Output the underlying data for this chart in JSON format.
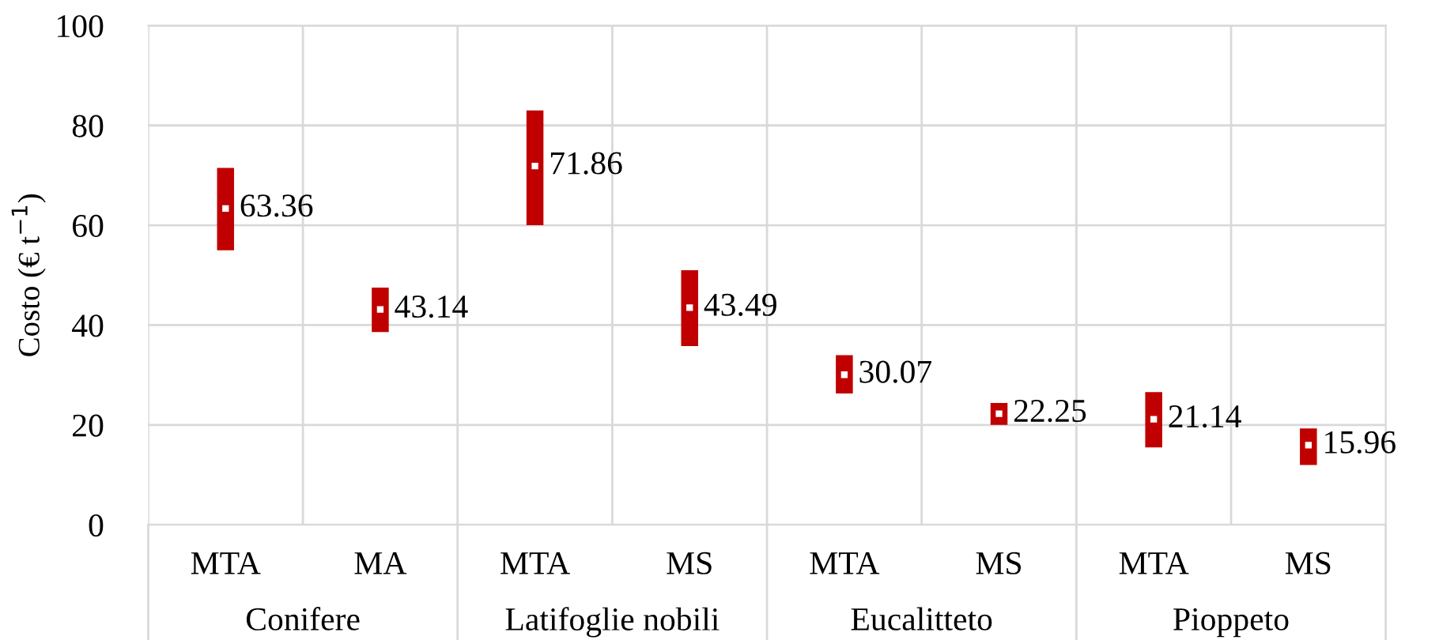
{
  "chart_data": {
    "type": "bar",
    "ylabel": "Costo (€ t$^{−1}$)",
    "categories": [
      "MTA",
      "MA",
      "MTA",
      "MS",
      "MTA",
      "MS",
      "MTA",
      "MS"
    ],
    "series": [
      {
        "type": "bar",
        "color": "#c00000",
        "base": [
          55,
          38.6,
          60,
          35.8,
          26.3,
          20,
          15.5,
          12
        ],
        "values": [
          16.5,
          8.9,
          23,
          15.2,
          7.7,
          4.4,
          11.1,
          7.3
        ]
      },
      {
        "type": "scatter",
        "color": "#ffffff",
        "marker": "square",
        "values": [
          63.36,
          43.14,
          71.86,
          43.49,
          30.07,
          22.25,
          21.14,
          15.96
        ],
        "value_labels": [
          "63.36",
          "43.14",
          "71.86",
          "43.49",
          "30.07",
          "22.25",
          "21.14",
          "15.96"
        ]
      }
    ],
    "annotations": [
      "Conifere",
      "Latifoglie nobili",
      "Eucalitteto",
      "Pioppeto"
    ],
    "ylim": [
      0,
      100
    ],
    "yticks": [
      0,
      20,
      40,
      60,
      80,
      100
    ],
    "grid": true
  }
}
